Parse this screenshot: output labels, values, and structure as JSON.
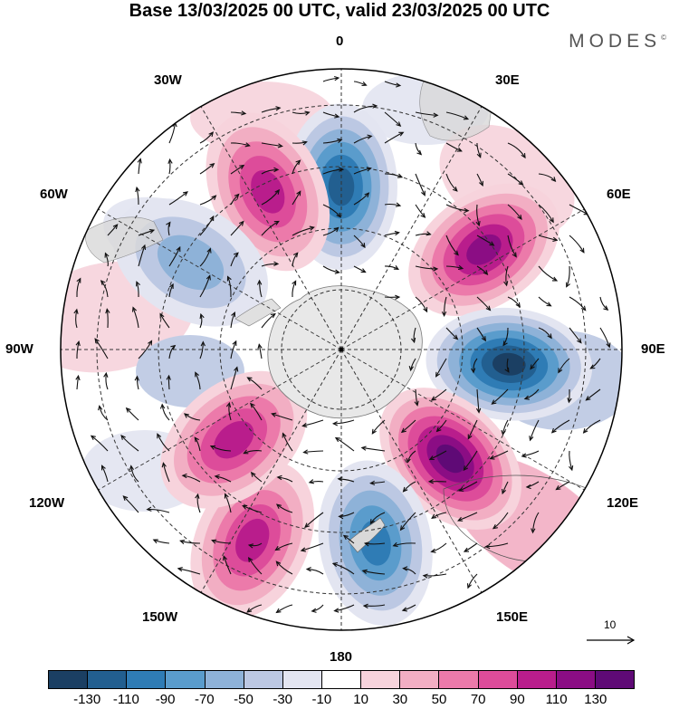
{
  "title": "Base 13/03/2025 00 UTC, valid 23/03/2025 00 UTC",
  "brand": "MODES",
  "brand_mark": "©",
  "longitude_labels": {
    "lon_0": "0",
    "lon_30e": "30E",
    "lon_60e": "60E",
    "lon_90e": "90E",
    "lon_120e": "120E",
    "lon_150e": "150E",
    "lon_180": "180",
    "lon_150w": "150W",
    "lon_120w": "120W",
    "lon_90w": "90W",
    "lon_60w": "60W",
    "lon_30w": "30W"
  },
  "reference_vector": "10",
  "colorbar": {
    "ticks": [
      "-130",
      "-110",
      "-90",
      "-70",
      "-50",
      "-30",
      "-10",
      "10",
      "30",
      "50",
      "70",
      "90",
      "110",
      "130"
    ],
    "colors": [
      "#1b3f63",
      "#225f90",
      "#2f7cb5",
      "#5a9ccc",
      "#8eb2d8",
      "#bcc8e3",
      "#e3e5f1",
      "#ffffff",
      "#f7d3dc",
      "#f2aec3",
      "#ec7aaa",
      "#dd4c9a",
      "#b91d8c",
      "#8b0d84",
      "#5f0a76"
    ]
  },
  "anomaly_centers": [
    {
      "lon": 0,
      "lat_colat_fraction": 0.58,
      "sign": "negative",
      "peak": -110
    },
    {
      "lon": -25,
      "lat_colat_fraction": 0.62,
      "sign": "positive",
      "peak": 90
    },
    {
      "lon": 55,
      "lat_colat_fraction": 0.62,
      "sign": "positive",
      "peak": 110
    },
    {
      "lon": 95,
      "lat_colat_fraction": 0.6,
      "sign": "negative",
      "peak": -130
    },
    {
      "lon": 135,
      "lat_colat_fraction": 0.55,
      "sign": "positive",
      "peak": 130
    },
    {
      "lon": 170,
      "lat_colat_fraction": 0.7,
      "sign": "negative",
      "peak": -90
    },
    {
      "lon": -155,
      "lat_colat_fraction": 0.75,
      "sign": "positive",
      "peak": 90
    },
    {
      "lon": -130,
      "lat_colat_fraction": 0.5,
      "sign": "positive",
      "peak": 90
    },
    {
      "lon": -60,
      "lat_colat_fraction": 0.62,
      "sign": "negative",
      "peak": -50
    }
  ]
}
